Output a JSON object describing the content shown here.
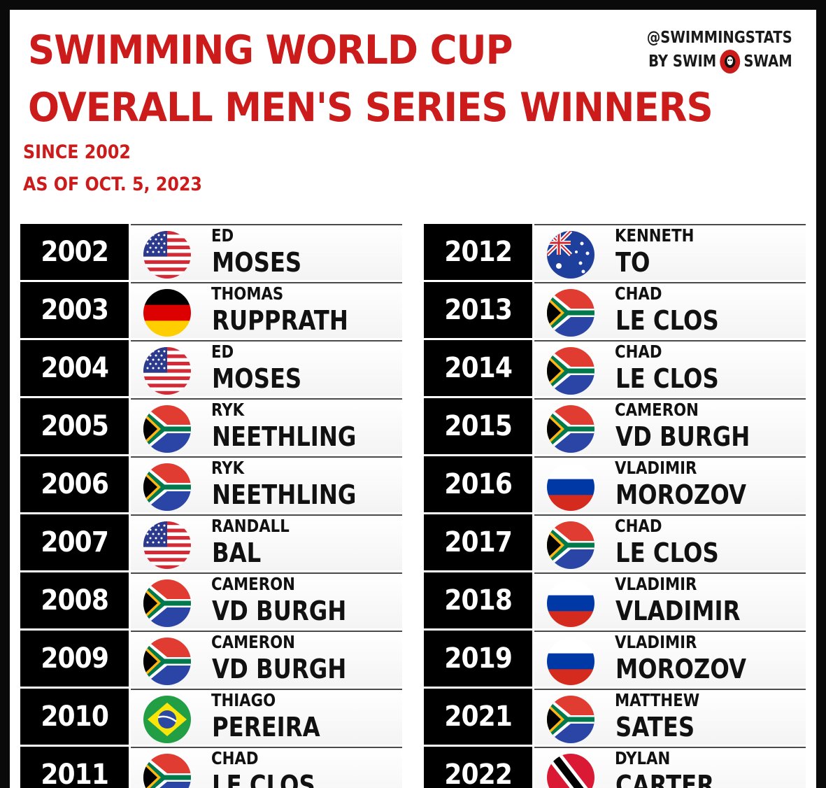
{
  "title_line1": "SWIMMING WORLD CUP",
  "title_line2": "OVERALL MEN'S SERIES WINNERS",
  "subtitle_line1": "SINCE 2002",
  "subtitle_line2": "AS OF OCT. 5, 2023",
  "credit": {
    "handle": "@SWIMMINGSTATS",
    "by": "BY SWIM",
    "brand": "SWAM"
  },
  "colors": {
    "accent": "#cc1b1b",
    "year_bg": "#000000"
  },
  "winners_left": [
    {
      "year": "2002",
      "first": "ED",
      "last": "MOSES",
      "flag": "usa"
    },
    {
      "year": "2003",
      "first": "THOMAS",
      "last": "RUPPRATH",
      "flag": "germany"
    },
    {
      "year": "2004",
      "first": "ED",
      "last": "MOSES",
      "flag": "usa"
    },
    {
      "year": "2005",
      "first": "RYK",
      "last": "NEETHLING",
      "flag": "south-africa"
    },
    {
      "year": "2006",
      "first": "RYK",
      "last": "NEETHLING",
      "flag": "south-africa"
    },
    {
      "year": "2007",
      "first": "RANDALL",
      "last": "BAL",
      "flag": "usa"
    },
    {
      "year": "2008",
      "first": "CAMERON",
      "last": "VD BURGH",
      "flag": "south-africa"
    },
    {
      "year": "2009",
      "first": "CAMERON",
      "last": "VD BURGH",
      "flag": "south-africa"
    },
    {
      "year": "2010",
      "first": "THIAGO",
      "last": "PEREIRA",
      "flag": "brazil"
    },
    {
      "year": "2011",
      "first": "CHAD",
      "last": "LE CLOS",
      "flag": "south-africa"
    }
  ],
  "winners_right": [
    {
      "year": "2012",
      "first": "KENNETH",
      "last": "TO",
      "flag": "australia"
    },
    {
      "year": "2013",
      "first": "CHAD",
      "last": "LE CLOS",
      "flag": "south-africa"
    },
    {
      "year": "2014",
      "first": "CHAD",
      "last": "LE CLOS",
      "flag": "south-africa"
    },
    {
      "year": "2015",
      "first": "CAMERON",
      "last": "VD BURGH",
      "flag": "south-africa"
    },
    {
      "year": "2016",
      "first": "VLADIMIR",
      "last": "MOROZOV",
      "flag": "russia"
    },
    {
      "year": "2017",
      "first": "CHAD",
      "last": "LE CLOS",
      "flag": "south-africa"
    },
    {
      "year": "2018",
      "first": "VLADIMIR",
      "last": "VLADIMIR",
      "flag": "russia"
    },
    {
      "year": "2019",
      "first": "VLADIMIR",
      "last": "MOROZOV",
      "flag": "russia"
    },
    {
      "year": "2021",
      "first": "MATTHEW",
      "last": "SATES",
      "flag": "south-africa"
    },
    {
      "year": "2022",
      "first": "DYLAN",
      "last": "CARTER",
      "flag": "trinidad-and-tobago"
    }
  ]
}
